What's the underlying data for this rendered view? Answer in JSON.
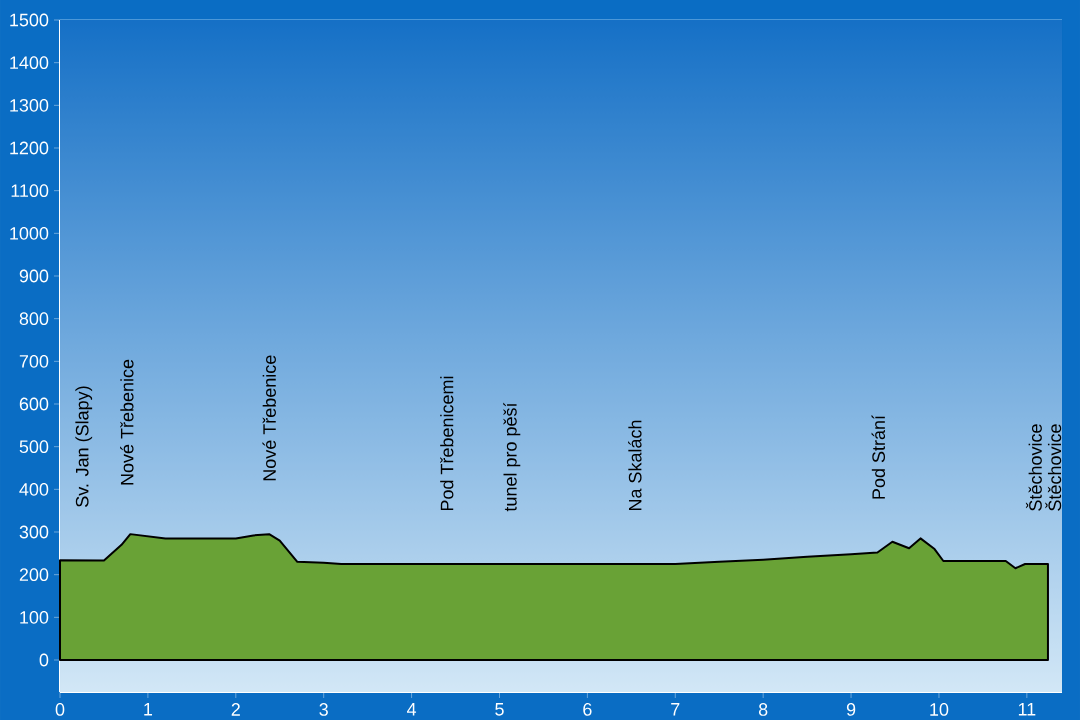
{
  "chart_data": {
    "type": "area",
    "xlim": [
      0,
      11.4
    ],
    "ylim": [
      -75,
      1500
    ],
    "xticks": [
      0,
      1,
      2,
      3,
      4,
      5,
      6,
      7,
      8,
      9,
      10,
      11
    ],
    "yticks": [
      0,
      100,
      200,
      300,
      400,
      500,
      600,
      700,
      800,
      900,
      1000,
      1100,
      1200,
      1300,
      1400,
      1500
    ],
    "grid": true,
    "series": [
      {
        "color": "#69a236",
        "x": [
          0,
          0.5,
          0.7,
          0.8,
          1.0,
          1.2,
          2.0,
          2.2,
          2.38,
          2.5,
          2.7,
          3.0,
          3.2,
          7.0,
          7.5,
          8.0,
          8.5,
          9.0,
          9.3,
          9.47,
          9.66,
          9.79,
          9.95,
          10.05,
          10.76,
          10.87,
          10.98,
          11.24
        ],
        "values": [
          234,
          233,
          270,
          295,
          290,
          285,
          285,
          292,
          295,
          280,
          230,
          228,
          225,
          225,
          230,
          235,
          242,
          248,
          252,
          277,
          262,
          285,
          260,
          232,
          232,
          215,
          225,
          225
        ]
      }
    ],
    "annotations": [
      {
        "text": "Sv. Jan (Slapy)",
        "x": 0.27,
        "y": 234
      },
      {
        "text": "Nové Třebenice",
        "x": 0.76,
        "y": 285
      },
      {
        "text": "Nové Třebenice",
        "x": 2.38,
        "y": 295
      },
      {
        "text": "Pod Třebenicemi",
        "x": 4.4,
        "y": 225
      },
      {
        "text": "tunel pro pěší",
        "x": 5.14,
        "y": 225
      },
      {
        "text": "Na Skalách",
        "x": 6.54,
        "y": 225
      },
      {
        "text": "Pod Strání",
        "x": 9.31,
        "y": 252
      },
      {
        "text": "Štěchovice",
        "x": 11.08,
        "y": 225
      },
      {
        "text": "Štěchovice",
        "x": 11.3,
        "y": 225
      }
    ]
  }
}
